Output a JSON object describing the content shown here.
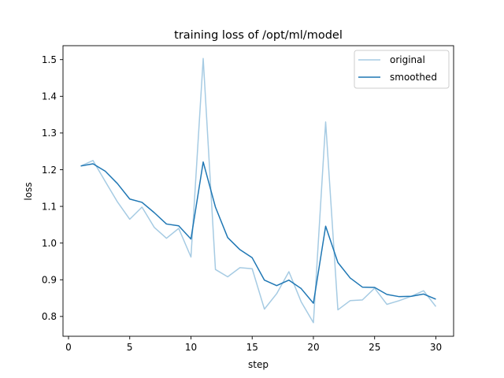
{
  "chart_data": {
    "type": "line",
    "title": "training loss of /opt/ml/model",
    "xlabel": "step",
    "ylabel": "loss",
    "xlim": [
      -0.45,
      31.45
    ],
    "ylim": [
      0.746,
      1.538
    ],
    "grid": false,
    "legend_position": "top-right",
    "x": [
      1,
      2,
      3,
      4,
      5,
      6,
      7,
      8,
      9,
      10,
      11,
      12,
      13,
      14,
      15,
      16,
      17,
      18,
      19,
      20,
      21,
      22,
      23,
      24,
      25,
      26,
      27,
      28,
      29,
      30
    ],
    "series": [
      {
        "name": "original",
        "color": "#a6cbe3",
        "values": [
          1.21,
          1.225,
          1.168,
          1.112,
          1.065,
          1.098,
          1.043,
          1.013,
          1.04,
          0.962,
          1.503,
          0.928,
          0.908,
          0.933,
          0.93,
          0.82,
          0.862,
          0.922,
          0.84,
          0.783,
          1.33,
          0.818,
          0.843,
          0.845,
          0.877,
          0.833,
          0.843,
          0.855,
          0.87,
          0.827
        ]
      },
      {
        "name": "smoothed",
        "color": "#1f77b4",
        "values": [
          1.21,
          1.216,
          1.196,
          1.162,
          1.12,
          1.111,
          1.083,
          1.052,
          1.047,
          1.011,
          1.221,
          1.098,
          1.015,
          0.982,
          0.96,
          0.899,
          0.884,
          0.899,
          0.876,
          0.836,
          1.046,
          0.947,
          0.905,
          0.88,
          0.879,
          0.86,
          0.854,
          0.855,
          0.861,
          0.847
        ]
      }
    ],
    "xticks": [
      0,
      5,
      10,
      15,
      20,
      25,
      30
    ],
    "yticks": [
      0.8,
      0.9,
      1.0,
      1.1,
      1.2,
      1.3,
      1.4,
      1.5
    ],
    "xtick_labels": [
      "0",
      "5",
      "10",
      "15",
      "20",
      "25",
      "30"
    ],
    "ytick_labels": [
      "0.8",
      "0.9",
      "1.0",
      "1.1",
      "1.2",
      "1.3",
      "1.4",
      "1.5"
    ]
  }
}
